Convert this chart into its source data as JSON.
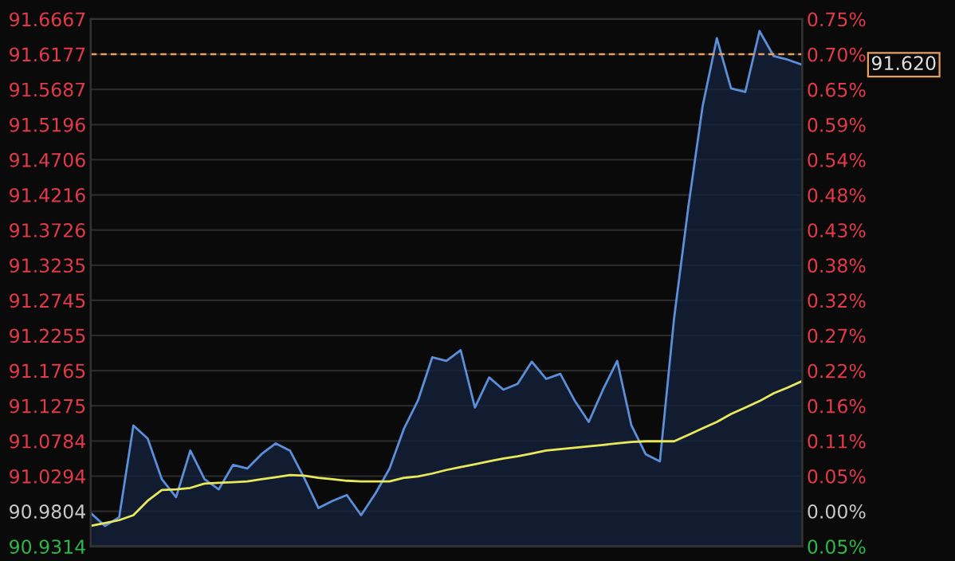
{
  "chart_data": {
    "type": "line",
    "categories": [
      null,
      null,
      null,
      null,
      null,
      null,
      null,
      null,
      null,
      null,
      null,
      null,
      null,
      null,
      null,
      null,
      null,
      null,
      null,
      null,
      null,
      null,
      null,
      null,
      null,
      null,
      null,
      null,
      null,
      null,
      null,
      null,
      null,
      null,
      null,
      null,
      null,
      null,
      null,
      null,
      null,
      null,
      null,
      null,
      null,
      null,
      null,
      null,
      null,
      null,
      null
    ],
    "series": [
      {
        "type": "area",
        "color": "#5b8fd9",
        "values": [
          90.978,
          90.96,
          90.972,
          91.1,
          91.082,
          91.025,
          91.0,
          91.065,
          91.025,
          91.011,
          91.045,
          91.04,
          91.06,
          91.075,
          91.065,
          91.027,
          90.985,
          90.995,
          91.003,
          90.975,
          91.005,
          91.04,
          91.095,
          91.135,
          91.195,
          91.19,
          91.205,
          91.125,
          91.167,
          91.15,
          91.158,
          91.189,
          91.165,
          91.172,
          91.135,
          91.105,
          91.15,
          91.19,
          91.1,
          91.06,
          91.05,
          91.25,
          91.405,
          91.545,
          91.64,
          91.57,
          91.565,
          91.65,
          91.615,
          91.61,
          91.603
        ]
      },
      {
        "color": "#e8e85a",
        "values": [
          90.96,
          90.964,
          90.968,
          90.975,
          90.995,
          91.01,
          91.011,
          91.013,
          91.019,
          91.02,
          91.021,
          91.022,
          91.025,
          91.028,
          91.031,
          91.03,
          91.027,
          91.025,
          91.023,
          91.022,
          91.022,
          91.022,
          91.027,
          91.029,
          91.033,
          91.038,
          91.042,
          91.046,
          91.05,
          91.054,
          91.057,
          91.061,
          91.065,
          91.067,
          91.069,
          91.071,
          91.073,
          91.075,
          91.077,
          91.078,
          91.078,
          91.078,
          91.087,
          91.096,
          91.105,
          91.116,
          91.125,
          91.134,
          91.145,
          91.153,
          91.162
        ]
      }
    ],
    "ylim": [
      90.9314,
      91.6667
    ],
    "yticks": [
      90.9314,
      90.9804,
      91.0294,
      91.0784,
      91.1275,
      91.1765,
      91.2255,
      91.2745,
      91.3235,
      91.3726,
      91.4216,
      91.4706,
      91.5196,
      91.5687,
      91.6177,
      91.6667
    ],
    "y2lim": [
      -0.0539,
      0.7543
    ],
    "y2ticks": [
      {
        "value": -0.0539,
        "label": "0.05%"
      },
      {
        "value": 0,
        "label": "0.00%"
      },
      {
        "value": 0.0539,
        "label": "0.05%"
      },
      {
        "value": 0.1077,
        "label": "0.11%"
      },
      {
        "value": 0.1616,
        "label": "0.16%"
      },
      {
        "value": 0.2154,
        "label": "0.22%"
      },
      {
        "value": 0.2693,
        "label": "0.27%"
      },
      {
        "value": 0.3232,
        "label": "0.32%"
      },
      {
        "value": 0.377,
        "label": "0.38%"
      },
      {
        "value": 0.4309,
        "label": "0.43%"
      },
      {
        "value": 0.4847,
        "label": "0.48%"
      },
      {
        "value": 0.5386,
        "label": "0.54%"
      },
      {
        "value": 0.5925,
        "label": "0.59%"
      },
      {
        "value": 0.6463,
        "label": "0.65%"
      },
      {
        "value": 0.7002,
        "label": "0.70%"
      },
      {
        "value": 0.7543,
        "label": "0.75%"
      }
    ],
    "ref_lines": [
      {
        "axis": "y",
        "value": 91.6177,
        "color": "#e8a060",
        "line_style": "dashed"
      }
    ],
    "annotations": [
      "91.620"
    ],
    "grid": "y",
    "legend": false
  }
}
